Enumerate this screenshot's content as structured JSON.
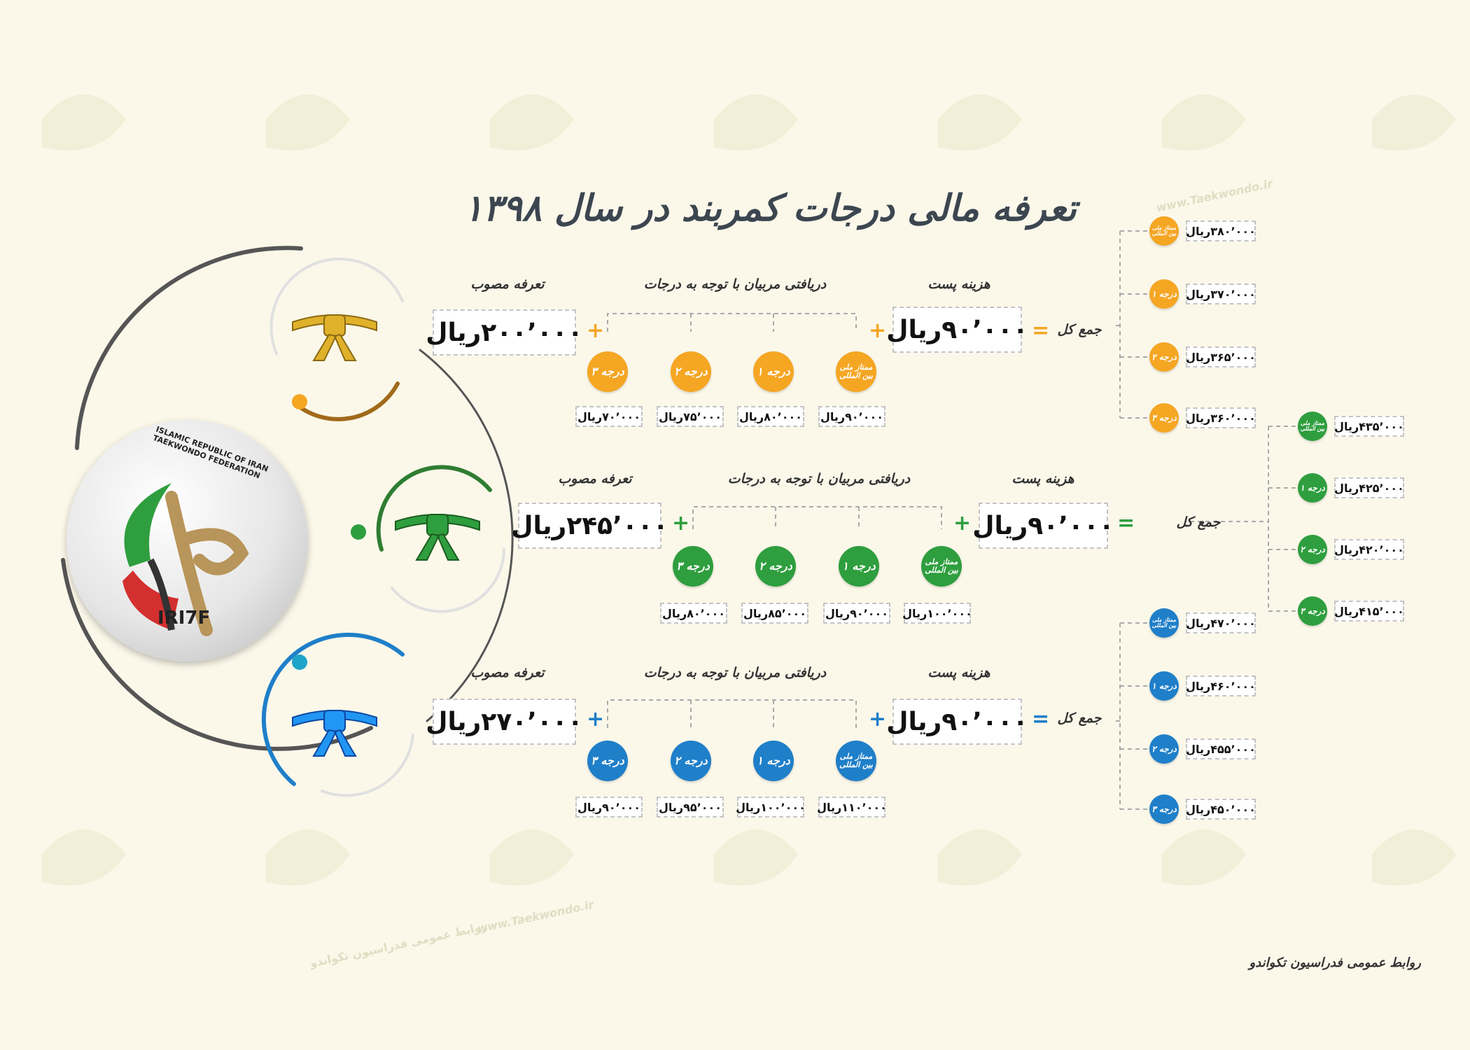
{
  "title": "تعرفه مالی درجات کمربند در سال ۱۳۹۸",
  "footer": "روابط عمومی فدراسیون تکواندو",
  "watermark": {
    "text_site": "www.Taekwondo.ir",
    "text_pr": "روابط عمومی فدراسیون تکواندو"
  },
  "logo": {
    "ring_text": "ISLAMIC REPUBLIC OF IRAN TAEKWONDO FEDERATION",
    "abbr": "IRI7F"
  },
  "colors": {
    "yellow": "#f5a623",
    "green": "#2e9e3e",
    "blue": "#1f7fc9",
    "background": "#fbf8ea"
  },
  "rows": {
    "yellow": {
      "approved_label": "تعرفه مصوب",
      "approved_value": "۲۰۰٬۰۰۰ریال",
      "coaches_label": "دریافتی مربیان با توجه به درجات",
      "post_label": "هزینه پست",
      "post_value": "۹۰٬۰۰۰ریال",
      "total_label": "جمع کل",
      "grades": [
        "درجه ۳",
        "درجه ۲",
        "درجه ۱",
        "ممتاز ملی بین المللی"
      ],
      "grade_values": [
        "۷۰٬۰۰۰ریال",
        "۷۵٬۰۰۰ریال",
        "۸۰٬۰۰۰ریال",
        "۹۰٬۰۰۰ریال"
      ],
      "totals": [
        {
          "grade": "ممتاز ملی بین المللی",
          "value": "۳۸۰٬۰۰۰ریال"
        },
        {
          "grade": "درجه ۱",
          "value": "۳۷۰٬۰۰۰ریال"
        },
        {
          "grade": "درجه ۲",
          "value": "۳۶۵٬۰۰۰ریال"
        },
        {
          "grade": "درجه ۳",
          "value": "۳۶۰٬۰۰۰ریال"
        }
      ]
    },
    "green": {
      "approved_label": "تعرفه مصوب",
      "approved_value": "۲۴۵٬۰۰۰ریال",
      "coaches_label": "دریافتی مربیان با توجه به درجات",
      "post_label": "هزینه پست",
      "post_value": "۹۰٬۰۰۰ریال",
      "total_label": "جمع کل",
      "grades": [
        "درجه ۳",
        "درجه ۲",
        "درجه ۱",
        "ممتاز ملی بین المللی"
      ],
      "grade_values": [
        "۸۰٬۰۰۰ریال",
        "۸۵٬۰۰۰ریال",
        "۹۰٬۰۰۰ریال",
        "۱۰۰٬۰۰۰ریال"
      ],
      "totals": [
        {
          "grade": "ممتاز ملی بین المللی",
          "value": "۴۳۵٬۰۰۰ریال"
        },
        {
          "grade": "درجه ۱",
          "value": "۴۲۵٬۰۰۰ریال"
        },
        {
          "grade": "درجه ۲",
          "value": "۴۲۰٬۰۰۰ریال"
        },
        {
          "grade": "درجه ۳",
          "value": "۴۱۵٬۰۰۰ریال"
        }
      ]
    },
    "blue": {
      "approved_label": "تعرفه مصوب",
      "approved_value": "۲۷۰٬۰۰۰ریال",
      "coaches_label": "دریافتی مربیان با توجه به درجات",
      "post_label": "هزینه پست",
      "post_value": "۹۰٬۰۰۰ریال",
      "total_label": "جمع کل",
      "grades": [
        "درجه ۳",
        "درجه ۲",
        "درجه ۱",
        "ممتاز ملی بین المللی"
      ],
      "grade_values": [
        "۹۰٬۰۰۰ریال",
        "۹۵٬۰۰۰ریال",
        "۱۰۰٬۰۰۰ریال",
        "۱۱۰٬۰۰۰ریال"
      ],
      "totals": [
        {
          "grade": "ممتاز ملی بین المللی",
          "value": "۴۷۰٬۰۰۰ریال"
        },
        {
          "grade": "درجه ۱",
          "value": "۴۶۰٬۰۰۰ریال"
        },
        {
          "grade": "درجه ۲",
          "value": "۴۵۵٬۰۰۰ریال"
        },
        {
          "grade": "درجه ۳",
          "value": "۴۵۰٬۰۰۰ریال"
        }
      ]
    }
  }
}
